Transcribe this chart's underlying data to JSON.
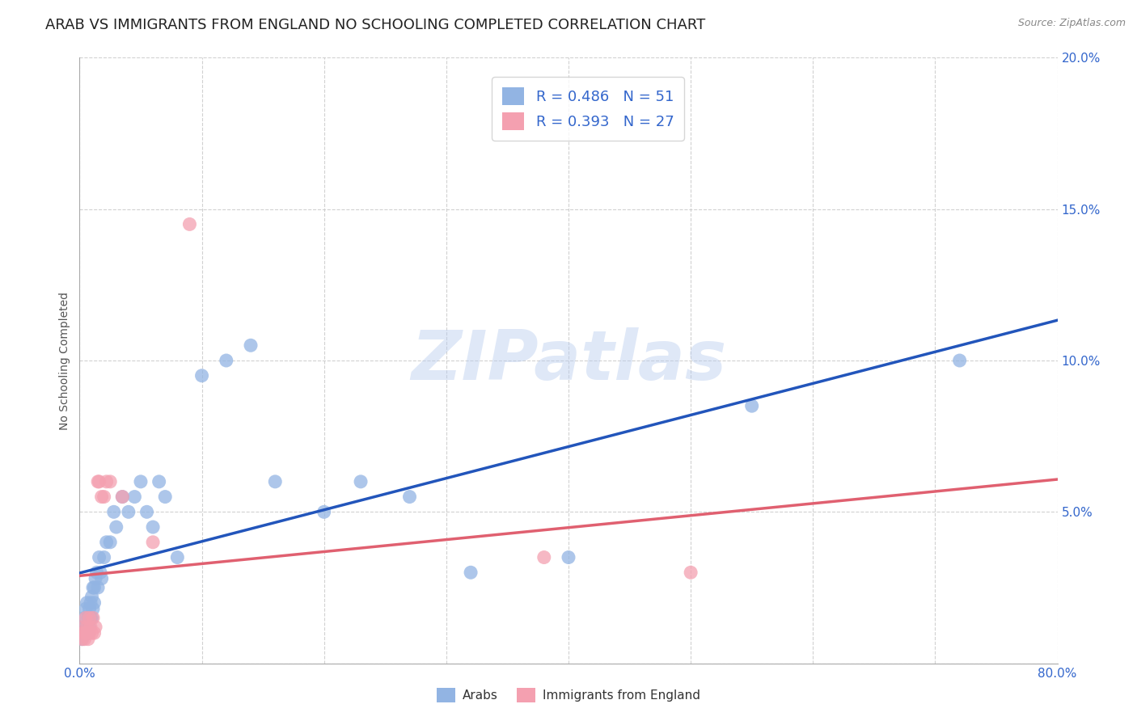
{
  "title": "ARAB VS IMMIGRANTS FROM ENGLAND NO SCHOOLING COMPLETED CORRELATION CHART",
  "source": "Source: ZipAtlas.com",
  "ylabel": "No Schooling Completed",
  "xlim": [
    0,
    0.8
  ],
  "ylim": [
    0,
    0.2
  ],
  "xticks": [
    0.0,
    0.1,
    0.2,
    0.3,
    0.4,
    0.5,
    0.6,
    0.7,
    0.8
  ],
  "yticks": [
    0.0,
    0.05,
    0.1,
    0.15,
    0.2
  ],
  "arab_color": "#92b4e3",
  "england_color": "#f4a0b0",
  "arab_line_color": "#2255bb",
  "england_line_color": "#e06070",
  "background_color": "#ffffff",
  "watermark": "ZIPatlas",
  "arab_x": [
    0.002,
    0.003,
    0.004,
    0.004,
    0.005,
    0.005,
    0.006,
    0.006,
    0.007,
    0.007,
    0.008,
    0.008,
    0.009,
    0.009,
    0.01,
    0.01,
    0.011,
    0.011,
    0.012,
    0.012,
    0.013,
    0.014,
    0.015,
    0.016,
    0.017,
    0.018,
    0.02,
    0.022,
    0.025,
    0.028,
    0.03,
    0.035,
    0.04,
    0.045,
    0.05,
    0.055,
    0.06,
    0.065,
    0.07,
    0.08,
    0.1,
    0.12,
    0.14,
    0.16,
    0.2,
    0.23,
    0.27,
    0.32,
    0.4,
    0.55,
    0.72
  ],
  "arab_y": [
    0.008,
    0.01,
    0.012,
    0.015,
    0.01,
    0.018,
    0.012,
    0.02,
    0.01,
    0.015,
    0.012,
    0.018,
    0.015,
    0.02,
    0.015,
    0.022,
    0.018,
    0.025,
    0.02,
    0.025,
    0.028,
    0.03,
    0.025,
    0.035,
    0.03,
    0.028,
    0.035,
    0.04,
    0.04,
    0.05,
    0.045,
    0.055,
    0.05,
    0.055,
    0.06,
    0.05,
    0.045,
    0.06,
    0.055,
    0.035,
    0.095,
    0.1,
    0.105,
    0.06,
    0.05,
    0.06,
    0.055,
    0.03,
    0.035,
    0.085,
    0.1
  ],
  "england_x": [
    0.002,
    0.003,
    0.003,
    0.004,
    0.005,
    0.005,
    0.006,
    0.006,
    0.007,
    0.008,
    0.008,
    0.009,
    0.01,
    0.011,
    0.012,
    0.013,
    0.015,
    0.016,
    0.018,
    0.02,
    0.022,
    0.025,
    0.035,
    0.06,
    0.09,
    0.38,
    0.5
  ],
  "england_y": [
    0.008,
    0.01,
    0.012,
    0.008,
    0.01,
    0.015,
    0.01,
    0.012,
    0.008,
    0.01,
    0.015,
    0.012,
    0.01,
    0.015,
    0.01,
    0.012,
    0.06,
    0.06,
    0.055,
    0.055,
    0.06,
    0.06,
    0.055,
    0.04,
    0.145,
    0.035,
    0.03
  ],
  "title_fontsize": 13,
  "axis_label_fontsize": 10,
  "tick_fontsize": 11,
  "legend_fontsize": 13,
  "legend_color": "#3366cc"
}
